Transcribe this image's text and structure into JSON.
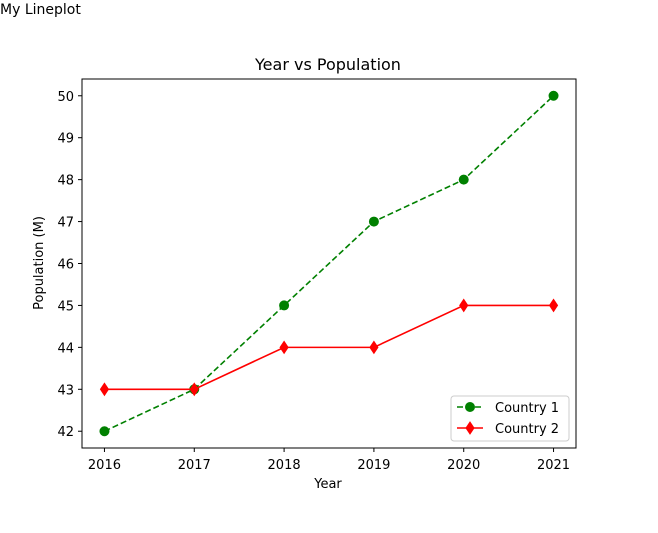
{
  "page": {
    "heading": "My Lineplot"
  },
  "chart_data": {
    "type": "line",
    "title": "Year vs Population",
    "xlabel": "Year",
    "ylabel": "Population (M)",
    "x": [
      2016,
      2017,
      2018,
      2019,
      2020,
      2021
    ],
    "xlim": [
      2015.75,
      2021.25
    ],
    "ylim": [
      41.6,
      50.4
    ],
    "yticks": [
      42,
      43,
      44,
      45,
      46,
      47,
      48,
      49,
      50
    ],
    "grid": false,
    "legend_position": "lower right",
    "series": [
      {
        "name": "Country 1",
        "values": [
          42,
          43,
          45,
          47,
          48,
          50
        ],
        "color": "#008000",
        "linestyle": "dashed",
        "marker": "circle"
      },
      {
        "name": "Country 2",
        "values": [
          43,
          43,
          44,
          44,
          45,
          45
        ],
        "color": "#ff0000",
        "linestyle": "solid",
        "marker": "diamond"
      }
    ]
  }
}
